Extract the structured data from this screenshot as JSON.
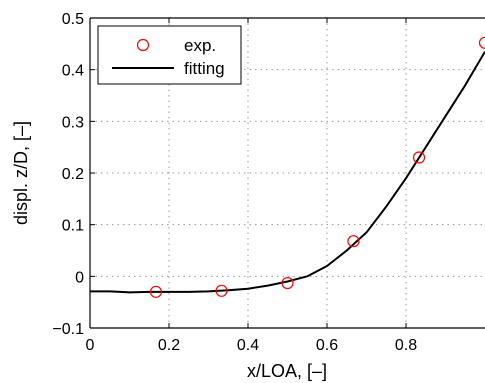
{
  "chart_data": {
    "type": "line",
    "title": "",
    "xlabel": "x/LOA, [–]",
    "ylabel": "displ. z/D, [–]",
    "xlim": [
      0,
      1
    ],
    "ylim": [
      -0.1,
      0.5
    ],
    "x_ticks": [
      0,
      0.2,
      0.4,
      0.6,
      0.8
    ],
    "x_tick_labels": [
      "0",
      "0.2",
      "0.4",
      "0.6",
      "0.8"
    ],
    "y_ticks": [
      -0.1,
      0,
      0.1,
      0.2,
      0.3,
      0.4,
      0.5
    ],
    "y_tick_labels": [
      "−0.1",
      "0",
      "0.1",
      "0.2",
      "0.3",
      "0.4",
      "0.5"
    ],
    "grid": true,
    "legend_position": "top-left",
    "series": [
      {
        "name": "exp.",
        "style": "markers",
        "marker": "circle",
        "color": "#ff0000",
        "x": [
          0.167,
          0.333,
          0.5,
          0.667,
          0.833,
          1.0
        ],
        "y": [
          -0.03,
          -0.028,
          -0.013,
          0.068,
          0.23,
          0.452
        ]
      },
      {
        "name": "fitting",
        "style": "line",
        "color": "#000000",
        "x": [
          0,
          0.05,
          0.1,
          0.15,
          0.2,
          0.25,
          0.3,
          0.35,
          0.4,
          0.45,
          0.5,
          0.55,
          0.6,
          0.65,
          0.7,
          0.75,
          0.8,
          0.85,
          0.9,
          0.95,
          1.0
        ],
        "y": [
          -0.029,
          -0.029,
          -0.031,
          -0.03,
          -0.03,
          -0.03,
          -0.029,
          -0.027,
          -0.024,
          -0.018,
          -0.01,
          0.0,
          0.02,
          0.05,
          0.085,
          0.135,
          0.19,
          0.25,
          0.31,
          0.37,
          0.435
        ]
      }
    ]
  }
}
